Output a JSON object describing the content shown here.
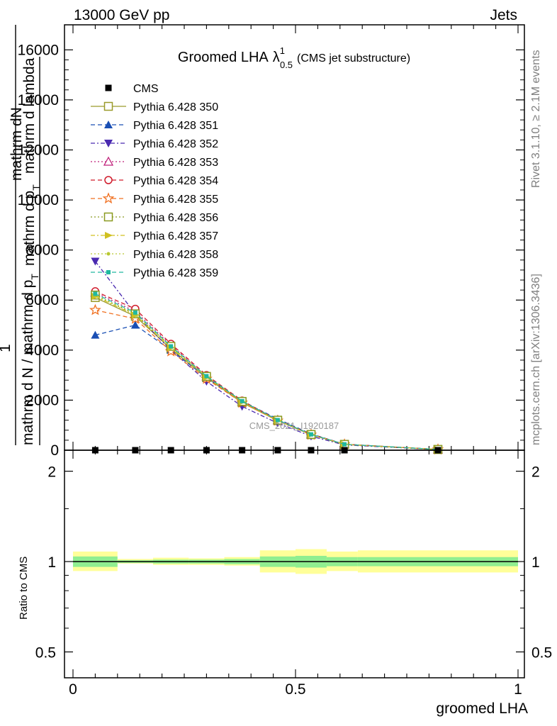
{
  "header": {
    "left": "13000 GeV pp",
    "right": "Jets"
  },
  "side_labels": {
    "rivet": "Rivet 3.1.10, ≥ 2.1M events",
    "mcplots": "mcplots.cern.ch [arXiv:1306.3436]"
  },
  "chart_data": [
    {
      "type": "line",
      "title_main": "Groomed LHA",
      "title_symbol": "λ",
      "title_sup": "1",
      "title_sub": "0.5",
      "title_paren": "(CMS jet substructure)",
      "ylabel_line1": "mathrm d",
      "ylabel_N": "N",
      "ylabel_pt": "mathrm d p",
      "ylabel_pt_sub": "T",
      "ylabel_lambda": "mathrm d lambda",
      "ylabel_one": "1",
      "ylabel_den": "mathrm d N / mathrm d p",
      "ylabel_den2": "mathrm d N / mathrm d p",
      "ylabel_den_sub": "T",
      "watermark": "CMS_2021_I1920187",
      "ylim": [
        0,
        17000
      ],
      "yticks": [
        0,
        2000,
        4000,
        6000,
        8000,
        10000,
        12000,
        14000,
        16000
      ],
      "ytick_labels": [
        "0",
        "2000",
        "4000",
        "6000",
        "8000",
        "10000",
        "12000",
        "14000",
        "16000"
      ],
      "xlim": [
        0,
        1
      ],
      "x": [
        0.05,
        0.14,
        0.22,
        0.3,
        0.38,
        0.46,
        0.535,
        0.61,
        0.82
      ],
      "series": [
        {
          "name": "CMS",
          "color": "#000000",
          "marker": "square-filled",
          "dash": "",
          "values": [
            0,
            0,
            0,
            0,
            0,
            0,
            0,
            0,
            0
          ]
        },
        {
          "name": "Pythia 6.428 350",
          "color": "#9a9a2a",
          "marker": "square-open",
          "dash": "",
          "values": [
            6100,
            5350,
            4050,
            2900,
            1900,
            1180,
            620,
            230,
            30
          ]
        },
        {
          "name": "Pythia 6.428 351",
          "color": "#1a4fb4",
          "marker": "triangle-up-filled",
          "dash": "6,4",
          "values": [
            4600,
            5000,
            4000,
            2900,
            1950,
            1250,
            650,
            240,
            30
          ]
        },
        {
          "name": "Pythia 6.428 352",
          "color": "#4a2ab0",
          "marker": "triangle-down-filled",
          "dash": "6,3,2,3",
          "values": [
            7550,
            5450,
            4000,
            2750,
            1750,
            1080,
            560,
            210,
            25
          ]
        },
        {
          "name": "Pythia 6.428 353",
          "color": "#c0207a",
          "marker": "triangle-up-open",
          "dash": "2,3",
          "values": [
            6300,
            5550,
            4200,
            2950,
            1950,
            1200,
            630,
            235,
            30
          ]
        },
        {
          "name": "Pythia 6.428 354",
          "color": "#d01a2a",
          "marker": "circle-open",
          "dash": "6,4",
          "values": [
            6350,
            5650,
            4250,
            3000,
            1980,
            1210,
            640,
            240,
            30
          ]
        },
        {
          "name": "Pythia 6.428 355",
          "color": "#f07020",
          "marker": "star-open",
          "dash": "6,4",
          "values": [
            5600,
            5250,
            3950,
            2850,
            1900,
            1180,
            620,
            230,
            30
          ]
        },
        {
          "name": "Pythia 6.428 356",
          "color": "#8a9a20",
          "marker": "square-open",
          "dash": "2,3",
          "values": [
            6200,
            5450,
            4150,
            2950,
            1950,
            1200,
            630,
            235,
            30
          ]
        },
        {
          "name": "Pythia 6.428 357",
          "color": "#d0c020",
          "marker": "triangle-right-filled",
          "dash": "6,3,2,3",
          "values": [
            6150,
            5400,
            4100,
            2920,
            1930,
            1190,
            625,
            232,
            30
          ]
        },
        {
          "name": "Pythia 6.428 358",
          "color": "#b8c830",
          "marker": "dot",
          "dash": "2,3",
          "values": [
            6180,
            5420,
            4120,
            2930,
            1940,
            1195,
            628,
            233,
            30
          ]
        },
        {
          "name": "Pythia 6.428 359",
          "color": "#20b8a0",
          "marker": "square-small-filled",
          "dash": "6,4",
          "values": [
            6250,
            5500,
            4150,
            2960,
            1960,
            1205,
            632,
            236,
            30
          ]
        }
      ]
    },
    {
      "type": "area",
      "ylabel": "Ratio to CMS",
      "xlabel": "groomed LHA",
      "log_scale_y": true,
      "ylim": [
        0.41,
        2.35
      ],
      "yticks": [
        0.5,
        1,
        2
      ],
      "ytick_labels": [
        "0.5",
        "1",
        "2"
      ],
      "xlim": [
        0,
        1
      ],
      "xticks": [
        0,
        0.5,
        1
      ],
      "xtick_labels": [
        "0",
        "0.5",
        "1"
      ],
      "bins": [
        0,
        0.1,
        0.18,
        0.26,
        0.34,
        0.42,
        0.5,
        0.57,
        0.64,
        1.0
      ],
      "band_inner_color": "#90ee90",
      "band_outer_color": "#ffff99",
      "band_inner": [
        [
          0.96,
          1.04
        ],
        [
          0.99,
          1.01
        ],
        [
          0.985,
          1.015
        ],
        [
          0.985,
          1.015
        ],
        [
          0.98,
          1.02
        ],
        [
          0.96,
          1.04
        ],
        [
          0.955,
          1.045
        ],
        [
          0.965,
          1.035
        ],
        [
          0.965,
          1.035
        ]
      ],
      "band_outer": [
        [
          0.93,
          1.08
        ],
        [
          0.985,
          1.02
        ],
        [
          0.975,
          1.03
        ],
        [
          0.975,
          1.025
        ],
        [
          0.97,
          1.035
        ],
        [
          0.92,
          1.09
        ],
        [
          0.91,
          1.1
        ],
        [
          0.93,
          1.08
        ],
        [
          0.92,
          1.09
        ]
      ],
      "reference": 1
    }
  ]
}
